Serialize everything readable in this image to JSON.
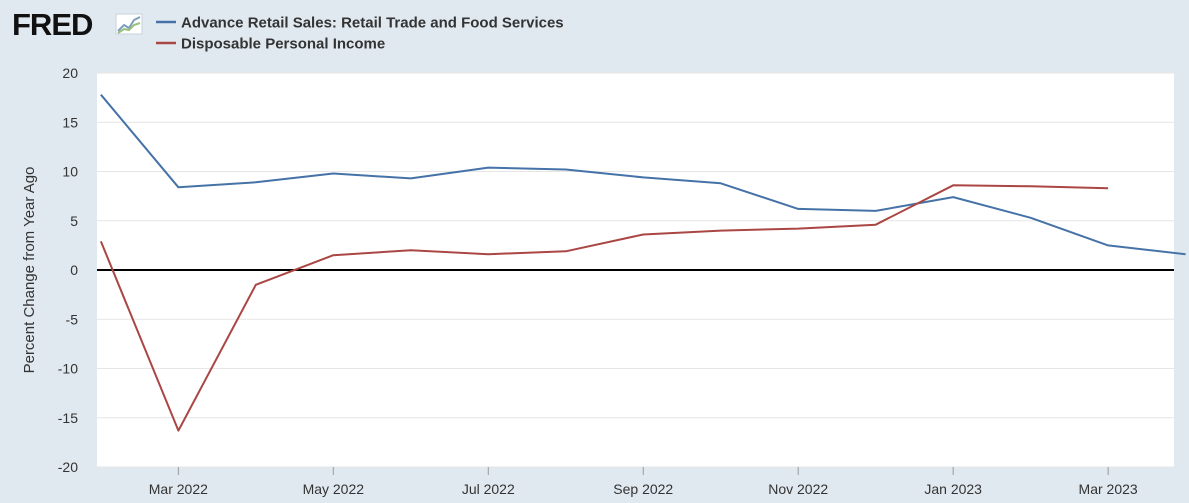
{
  "brand": {
    "logo_text": "FRED",
    "logo_icon": "line-chart-icon"
  },
  "colors": {
    "background": "#e1e9f0",
    "plot_background": "#ffffff",
    "grid": "#e6e6e6",
    "zero_line": "#000000",
    "series_retail": "#4572a7",
    "series_income": "#aa4643"
  },
  "chart_data": {
    "type": "line",
    "title": "",
    "xlabel": "",
    "ylabel": "Percent Change from Year Ago",
    "ylim": [
      -20,
      20
    ],
    "yticks": [
      20,
      15,
      10,
      5,
      0,
      -5,
      -10,
      -15,
      -20
    ],
    "ytick_labels": [
      "20",
      "15",
      "10",
      "5",
      "0",
      "-5",
      "-10",
      "-15",
      "-20"
    ],
    "x": [
      "Feb 2022",
      "Mar 2022",
      "Apr 2022",
      "May 2022",
      "Jun 2022",
      "Jul 2022",
      "Aug 2022",
      "Sep 2022",
      "Oct 2022",
      "Nov 2022",
      "Dec 2022",
      "Jan 2023",
      "Feb 2023",
      "Mar 2023",
      "Apr 2023"
    ],
    "xticks": [
      "Mar 2022",
      "May 2022",
      "Jul 2022",
      "Sep 2022",
      "Nov 2022",
      "Jan 2023",
      "Mar 2023"
    ],
    "xrange_months": [
      -0.05,
      13.85
    ],
    "grid": true,
    "legend_position": "top-left",
    "series": [
      {
        "name": "Advance Retail Sales: Retail Trade and Food Services",
        "color": "#4572a7",
        "values": [
          17.8,
          8.4,
          8.9,
          9.8,
          9.3,
          10.4,
          10.2,
          9.4,
          8.8,
          6.2,
          6.0,
          7.4,
          5.3,
          2.5,
          1.6
        ]
      },
      {
        "name": "Disposable Personal Income",
        "color": "#aa4643",
        "values": [
          2.9,
          -16.3,
          -1.5,
          1.5,
          2.0,
          1.6,
          1.9,
          3.6,
          4.0,
          4.2,
          4.6,
          8.6,
          8.5,
          8.3,
          null
        ]
      }
    ]
  }
}
